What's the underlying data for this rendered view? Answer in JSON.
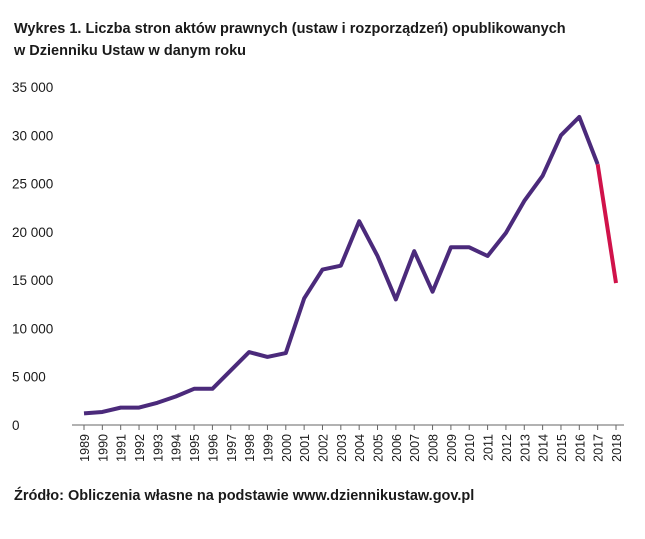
{
  "title_line1": "Wykres 1. Liczba stron aktów prawnych (ustaw i rozporządzeń) opublikowanych",
  "title_line2": "w Dzienniku Ustaw w danym roku",
  "source": "Źródło: Obliczenia własne na podstawie www.dziennikustaw.gov.pl",
  "colors": {
    "main": "#4b2a7b",
    "highlight": "#d0124a",
    "axis": "#666666",
    "text": "#1a1a1a"
  },
  "chart_data": {
    "type": "line",
    "title": "Wykres 1. Liczba stron aktów prawnych (ustaw i rozporządzeń) opublikowanych w Dzienniku Ustaw w danym roku",
    "xlabel": "",
    "ylabel": "",
    "ylim": [
      0,
      35000
    ],
    "yticks": [
      0,
      5000,
      10000,
      15000,
      20000,
      25000,
      30000,
      35000
    ],
    "ytick_labels": [
      "0",
      "5 000",
      "10 000",
      "15 000",
      "20 000",
      "25 000",
      "30 000",
      "35 000"
    ],
    "grid": false,
    "legend": "none",
    "x": [
      "1989",
      "1990",
      "1991",
      "1992",
      "1993",
      "1994",
      "1995",
      "1996",
      "1997",
      "1998",
      "1999",
      "2000",
      "2001",
      "2002",
      "2003",
      "2004",
      "2005",
      "2006",
      "2007",
      "2008",
      "2009",
      "2010",
      "2011",
      "2012",
      "2013",
      "2014",
      "2015",
      "2016",
      "2017",
      "2018"
    ],
    "values": [
      1200,
      1350,
      1800,
      1800,
      2300,
      2950,
      3750,
      3750,
      5650,
      7550,
      7050,
      7450,
      13100,
      16100,
      16500,
      21100,
      17500,
      13000,
      18000,
      13800,
      18400,
      18400,
      17500,
      19900,
      23200,
      25800,
      30000,
      31900,
      27000,
      14700
    ],
    "highlight_from": "2017"
  }
}
